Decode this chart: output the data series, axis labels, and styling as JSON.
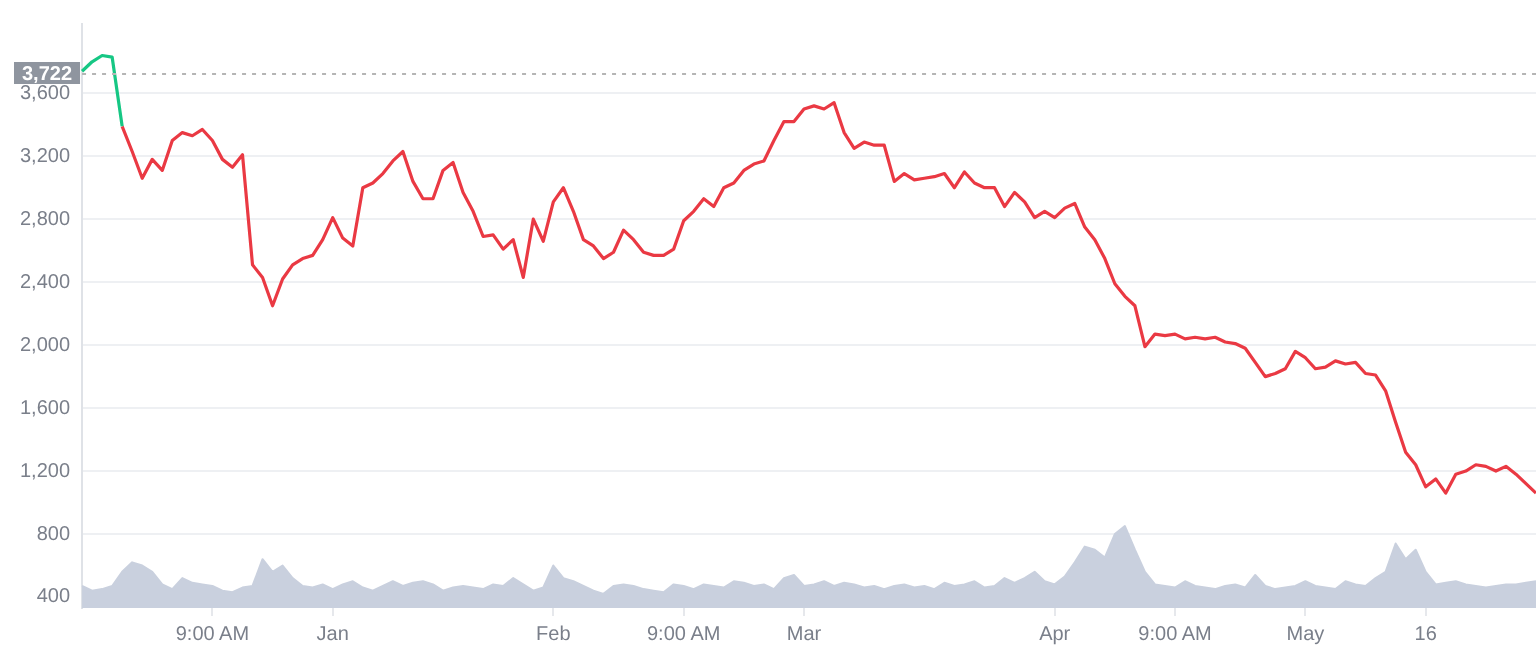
{
  "chart_data": {
    "type": "line",
    "categories": [
      null,
      null,
      null,
      null,
      null,
      null,
      null,
      null,
      null,
      null,
      null,
      null,
      null,
      "9:00 AM",
      null,
      null,
      null,
      null,
      null,
      null,
      null,
      null,
      null,
      null,
      null,
      "Jan",
      null,
      null,
      null,
      null,
      null,
      null,
      null,
      null,
      null,
      null,
      null,
      null,
      null,
      null,
      null,
      null,
      null,
      null,
      null,
      null,
      null,
      "Feb",
      null,
      null,
      null,
      null,
      null,
      null,
      null,
      null,
      null,
      null,
      null,
      null,
      "9:00 AM",
      null,
      null,
      null,
      null,
      null,
      null,
      null,
      null,
      null,
      null,
      null,
      "Mar",
      null,
      null,
      null,
      null,
      null,
      null,
      null,
      null,
      null,
      null,
      null,
      null,
      null,
      null,
      null,
      null,
      null,
      null,
      null,
      null,
      null,
      null,
      null,
      null,
      "Apr",
      null,
      null,
      null,
      null,
      null,
      null,
      null,
      null,
      null,
      null,
      null,
      "9:00 AM",
      null,
      null,
      null,
      null,
      null,
      null,
      null,
      null,
      null,
      null,
      null,
      null,
      "May",
      null,
      null,
      null,
      null,
      null,
      null,
      null,
      null,
      null,
      null,
      null,
      "16",
      null,
      null,
      null,
      null,
      null,
      null,
      null,
      null,
      null,
      null,
      null
    ],
    "series": [
      {
        "color": "#16c784",
        "values": [
          3740,
          3800,
          3840,
          3830,
          3390,
          null,
          null,
          null,
          null,
          null,
          null,
          null,
          null,
          null,
          null,
          null,
          null,
          null,
          null,
          null,
          null,
          null,
          null,
          null,
          null,
          null,
          null,
          null,
          null,
          null,
          null,
          null,
          null,
          null,
          null,
          null,
          null,
          null,
          null,
          null,
          null,
          null,
          null,
          null,
          null,
          null,
          null,
          null,
          null,
          null,
          null,
          null,
          null,
          null,
          null,
          null,
          null,
          null,
          null,
          null,
          null,
          null,
          null,
          null,
          null,
          null,
          null,
          null,
          null,
          null,
          null,
          null,
          null,
          null,
          null,
          null,
          null,
          null,
          null,
          null,
          null,
          null,
          null,
          null,
          null,
          null,
          null,
          null,
          null,
          null,
          null,
          null,
          null,
          null,
          null,
          null,
          null,
          null,
          null,
          null,
          null,
          null,
          null,
          null,
          null,
          null,
          null,
          null,
          null,
          null,
          null,
          null,
          null,
          null,
          null,
          null,
          null,
          null,
          null,
          null,
          null,
          null,
          null,
          null,
          null,
          null,
          null,
          null,
          null,
          null,
          null,
          null,
          null,
          null,
          null,
          null,
          null,
          null,
          null,
          null,
          null,
          null,
          null,
          null,
          null,
          null
        ]
      },
      {
        "color": "#ea3943",
        "values": [
          null,
          null,
          null,
          null,
          3390,
          3230,
          3060,
          3180,
          3110,
          3300,
          3350,
          3330,
          3370,
          3300,
          3180,
          3130,
          3210,
          2510,
          2430,
          2250,
          2420,
          2510,
          2550,
          2570,
          2670,
          2810,
          2680,
          2630,
          3000,
          3030,
          3090,
          3170,
          3230,
          3040,
          2930,
          2930,
          3110,
          3160,
          2970,
          2850,
          2690,
          2700,
          2610,
          2670,
          2430,
          2800,
          2660,
          2910,
          3000,
          2850,
          2670,
          2630,
          2550,
          2590,
          2730,
          2670,
          2590,
          2570,
          2570,
          2610,
          2790,
          2850,
          2930,
          2880,
          3000,
          3030,
          3110,
          3150,
          3170,
          3300,
          3420,
          3420,
          3500,
          3520,
          3500,
          3540,
          3350,
          3250,
          3290,
          3270,
          3270,
          3040,
          3090,
          3050,
          3060,
          3070,
          3090,
          3000,
          3100,
          3030,
          3000,
          3000,
          2880,
          2970,
          2910,
          2810,
          2850,
          2810,
          2870,
          2900,
          2750,
          2670,
          2550,
          2390,
          2310,
          2250,
          1990,
          2070,
          2060,
          2070,
          2040,
          2050,
          2040,
          2050,
          2020,
          2010,
          1980,
          1890,
          1800,
          1820,
          1850,
          1960,
          1920,
          1850,
          1860,
          1900,
          1880,
          1890,
          1820,
          1810,
          1710,
          1510,
          1320,
          1240,
          1100,
          1150,
          1060,
          1180,
          1200,
          1240,
          1230,
          1200,
          1230,
          1180,
          1120,
          1060
        ]
      },
      {
        "type": "area",
        "color": "#c9d0de",
        "values": [
          470,
          440,
          450,
          470,
          560,
          620,
          600,
          560,
          480,
          450,
          520,
          490,
          480,
          470,
          440,
          430,
          460,
          470,
          640,
          560,
          600,
          520,
          470,
          460,
          480,
          450,
          480,
          500,
          460,
          440,
          470,
          500,
          470,
          490,
          500,
          480,
          440,
          460,
          470,
          460,
          450,
          480,
          470,
          520,
          480,
          440,
          460,
          600,
          520,
          500,
          470,
          440,
          420,
          470,
          480,
          470,
          450,
          440,
          430,
          480,
          470,
          450,
          480,
          470,
          460,
          500,
          490,
          470,
          480,
          450,
          520,
          540,
          470,
          480,
          500,
          470,
          490,
          480,
          460,
          470,
          450,
          470,
          480,
          460,
          470,
          450,
          490,
          470,
          480,
          500,
          460,
          470,
          520,
          490,
          520,
          560,
          500,
          480,
          530,
          620,
          720,
          700,
          650,
          800,
          850,
          700,
          560,
          480,
          470,
          460,
          500,
          470,
          460,
          450,
          470,
          480,
          460,
          540,
          470,
          450,
          460,
          470,
          500,
          470,
          460,
          450,
          500,
          480,
          470,
          520,
          560,
          740,
          640,
          700,
          560,
          480,
          490,
          500,
          480,
          470,
          460,
          470,
          480,
          480,
          490,
          500
        ]
      }
    ],
    "ylim": [
      330,
      4040
    ],
    "yticks": [
      400,
      800,
      {
        "value": 1200,
        "label": "1,200"
      },
      {
        "value": 1600,
        "label": "1,600"
      },
      {
        "value": 2000,
        "label": "2,000"
      },
      {
        "value": 2400,
        "label": "2,400"
      },
      {
        "value": 2800,
        "label": "2,800"
      },
      {
        "value": 3200,
        "label": "3,200"
      },
      {
        "value": 3600,
        "label": "3,600"
      }
    ],
    "grid": "y",
    "legend": false,
    "marker": "none",
    "ref_lines": [
      {
        "axis": "y",
        "value": 3722,
        "label": "3,722",
        "color": "#b5b5b5",
        "line_style": "dotted"
      }
    ]
  }
}
